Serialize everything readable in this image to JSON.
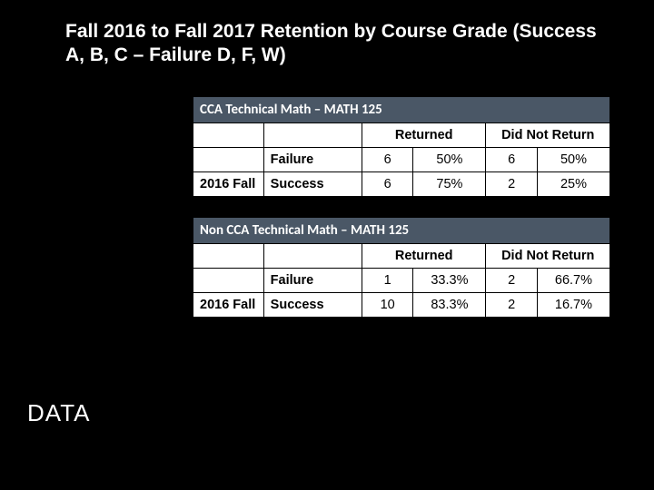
{
  "slide": {
    "title": "Fall 2016 to Fall 2017 Retention by Course Grade (Success A, B, C –  Failure D, F, W)",
    "side_label": "DATA",
    "title_color": "#ffffff",
    "background_color": "#000000",
    "title_fontsize": 21
  },
  "tables": {
    "header_bg": "#4a5766",
    "header_fg": "#ffffff",
    "cell_bg": "#ffffff",
    "border_color": "#000000",
    "cell_fontsize": 14.5,
    "cca": {
      "title": "CCA Technical Math – MATH 125",
      "group_headers": {
        "returned": "Returned",
        "did_not_return": "Did Not Return"
      },
      "period_label": "2016 Fall",
      "rows": [
        {
          "outcome": "Failure",
          "returned_n": "6",
          "returned_pct": "50%",
          "not_n": "6",
          "not_pct": "50%"
        },
        {
          "outcome": "Success",
          "returned_n": "6",
          "returned_pct": "75%",
          "not_n": "2",
          "not_pct": "25%"
        }
      ]
    },
    "noncca": {
      "title": "Non CCA Technical Math – MATH 125",
      "group_headers": {
        "returned": "Returned",
        "did_not_return": "Did Not Return"
      },
      "period_label": "2016 Fall",
      "rows": [
        {
          "outcome": "Failure",
          "returned_n": "1",
          "returned_pct": "33.3%",
          "not_n": "2",
          "not_pct": "66.7%"
        },
        {
          "outcome": "Success",
          "returned_n": "10",
          "returned_pct": "83.3%",
          "not_n": "2",
          "not_pct": "16.7%"
        }
      ]
    }
  }
}
